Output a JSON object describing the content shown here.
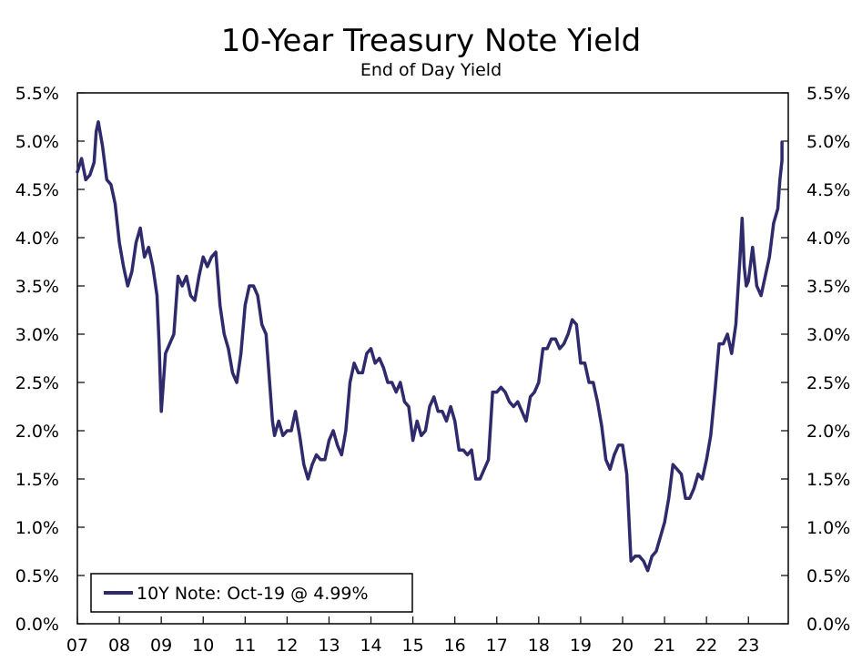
{
  "chart_data": {
    "type": "line",
    "title": "10-Year Treasury Note Yield",
    "subtitle": "End of Day Yield",
    "xlabel": "",
    "ylabel": "",
    "x_ticks": [
      "07",
      "08",
      "09",
      "10",
      "11",
      "12",
      "13",
      "14",
      "15",
      "16",
      "17",
      "18",
      "19",
      "20",
      "21",
      "22",
      "23"
    ],
    "y_ticks_left": [
      "0.0%",
      "0.5%",
      "1.0%",
      "1.5%",
      "2.0%",
      "2.5%",
      "3.0%",
      "3.5%",
      "4.0%",
      "4.5%",
      "5.0%",
      "5.5%"
    ],
    "y_ticks_right": [
      "0.0%",
      "0.5%",
      "1.0%",
      "1.5%",
      "2.0%",
      "2.5%",
      "3.0%",
      "3.5%",
      "4.0%",
      "4.5%",
      "5.0%",
      "5.5%"
    ],
    "xlim": [
      2007.0,
      2023.95
    ],
    "ylim": [
      0,
      5.5
    ],
    "grid": false,
    "legend_position": "bottom-left",
    "line_color": "#2e2a6b",
    "series": [
      {
        "name": "10Y Note: Oct-19 @ 4.99%",
        "points": [
          [
            2007.0,
            4.68
          ],
          [
            2007.1,
            4.82
          ],
          [
            2007.2,
            4.6
          ],
          [
            2007.3,
            4.65
          ],
          [
            2007.4,
            4.78
          ],
          [
            2007.45,
            5.1
          ],
          [
            2007.5,
            5.2
          ],
          [
            2007.6,
            4.95
          ],
          [
            2007.7,
            4.6
          ],
          [
            2007.8,
            4.55
          ],
          [
            2007.9,
            4.35
          ],
          [
            2008.0,
            3.95
          ],
          [
            2008.1,
            3.7
          ],
          [
            2008.2,
            3.5
          ],
          [
            2008.3,
            3.65
          ],
          [
            2008.4,
            3.95
          ],
          [
            2008.5,
            4.1
          ],
          [
            2008.6,
            3.8
          ],
          [
            2008.7,
            3.9
          ],
          [
            2008.8,
            3.7
          ],
          [
            2008.9,
            3.4
          ],
          [
            2008.95,
            2.9
          ],
          [
            2009.0,
            2.2
          ],
          [
            2009.1,
            2.8
          ],
          [
            2009.2,
            2.9
          ],
          [
            2009.3,
            3.0
          ],
          [
            2009.4,
            3.6
          ],
          [
            2009.5,
            3.5
          ],
          [
            2009.6,
            3.6
          ],
          [
            2009.7,
            3.4
          ],
          [
            2009.8,
            3.35
          ],
          [
            2009.9,
            3.6
          ],
          [
            2010.0,
            3.8
          ],
          [
            2010.1,
            3.7
          ],
          [
            2010.2,
            3.8
          ],
          [
            2010.3,
            3.85
          ],
          [
            2010.4,
            3.3
          ],
          [
            2010.5,
            3.0
          ],
          [
            2010.6,
            2.85
          ],
          [
            2010.7,
            2.6
          ],
          [
            2010.8,
            2.5
          ],
          [
            2010.9,
            2.8
          ],
          [
            2011.0,
            3.3
          ],
          [
            2011.1,
            3.5
          ],
          [
            2011.2,
            3.5
          ],
          [
            2011.3,
            3.4
          ],
          [
            2011.4,
            3.1
          ],
          [
            2011.5,
            3.0
          ],
          [
            2011.6,
            2.4
          ],
          [
            2011.65,
            2.1
          ],
          [
            2011.7,
            1.95
          ],
          [
            2011.8,
            2.1
          ],
          [
            2011.9,
            1.95
          ],
          [
            2012.0,
            2.0
          ],
          [
            2012.1,
            2.0
          ],
          [
            2012.2,
            2.2
          ],
          [
            2012.3,
            1.95
          ],
          [
            2012.4,
            1.65
          ],
          [
            2012.5,
            1.5
          ],
          [
            2012.6,
            1.65
          ],
          [
            2012.7,
            1.75
          ],
          [
            2012.8,
            1.7
          ],
          [
            2012.9,
            1.7
          ],
          [
            2013.0,
            1.9
          ],
          [
            2013.1,
            2.0
          ],
          [
            2013.2,
            1.85
          ],
          [
            2013.3,
            1.75
          ],
          [
            2013.4,
            2.0
          ],
          [
            2013.5,
            2.5
          ],
          [
            2013.6,
            2.7
          ],
          [
            2013.7,
            2.6
          ],
          [
            2013.8,
            2.6
          ],
          [
            2013.9,
            2.8
          ],
          [
            2014.0,
            2.85
          ],
          [
            2014.1,
            2.7
          ],
          [
            2014.2,
            2.75
          ],
          [
            2014.3,
            2.65
          ],
          [
            2014.4,
            2.5
          ],
          [
            2014.5,
            2.5
          ],
          [
            2014.6,
            2.4
          ],
          [
            2014.7,
            2.5
          ],
          [
            2014.8,
            2.3
          ],
          [
            2014.9,
            2.25
          ],
          [
            2015.0,
            1.9
          ],
          [
            2015.1,
            2.1
          ],
          [
            2015.2,
            1.95
          ],
          [
            2015.3,
            2.0
          ],
          [
            2015.4,
            2.25
          ],
          [
            2015.5,
            2.35
          ],
          [
            2015.6,
            2.2
          ],
          [
            2015.7,
            2.2
          ],
          [
            2015.8,
            2.1
          ],
          [
            2015.9,
            2.25
          ],
          [
            2016.0,
            2.1
          ],
          [
            2016.1,
            1.8
          ],
          [
            2016.2,
            1.8
          ],
          [
            2016.3,
            1.75
          ],
          [
            2016.4,
            1.8
          ],
          [
            2016.5,
            1.5
          ],
          [
            2016.6,
            1.5
          ],
          [
            2016.7,
            1.6
          ],
          [
            2016.8,
            1.7
          ],
          [
            2016.9,
            2.4
          ],
          [
            2017.0,
            2.4
          ],
          [
            2017.1,
            2.45
          ],
          [
            2017.2,
            2.4
          ],
          [
            2017.3,
            2.3
          ],
          [
            2017.4,
            2.25
          ],
          [
            2017.5,
            2.3
          ],
          [
            2017.6,
            2.2
          ],
          [
            2017.7,
            2.1
          ],
          [
            2017.8,
            2.35
          ],
          [
            2017.9,
            2.4
          ],
          [
            2018.0,
            2.5
          ],
          [
            2018.1,
            2.85
          ],
          [
            2018.2,
            2.85
          ],
          [
            2018.3,
            2.95
          ],
          [
            2018.4,
            2.95
          ],
          [
            2018.5,
            2.85
          ],
          [
            2018.6,
            2.9
          ],
          [
            2018.7,
            3.0
          ],
          [
            2018.8,
            3.15
          ],
          [
            2018.9,
            3.1
          ],
          [
            2019.0,
            2.7
          ],
          [
            2019.1,
            2.7
          ],
          [
            2019.2,
            2.5
          ],
          [
            2019.3,
            2.5
          ],
          [
            2019.4,
            2.3
          ],
          [
            2019.5,
            2.05
          ],
          [
            2019.6,
            1.7
          ],
          [
            2019.7,
            1.6
          ],
          [
            2019.8,
            1.75
          ],
          [
            2019.9,
            1.85
          ],
          [
            2020.0,
            1.85
          ],
          [
            2020.1,
            1.55
          ],
          [
            2020.15,
            1.1
          ],
          [
            2020.2,
            0.65
          ],
          [
            2020.3,
            0.7
          ],
          [
            2020.4,
            0.7
          ],
          [
            2020.5,
            0.65
          ],
          [
            2020.6,
            0.55
          ],
          [
            2020.7,
            0.7
          ],
          [
            2020.8,
            0.75
          ],
          [
            2020.9,
            0.9
          ],
          [
            2021.0,
            1.05
          ],
          [
            2021.1,
            1.3
          ],
          [
            2021.2,
            1.65
          ],
          [
            2021.3,
            1.6
          ],
          [
            2021.4,
            1.55
          ],
          [
            2021.5,
            1.3
          ],
          [
            2021.6,
            1.3
          ],
          [
            2021.7,
            1.4
          ],
          [
            2021.8,
            1.55
          ],
          [
            2021.9,
            1.5
          ],
          [
            2022.0,
            1.7
          ],
          [
            2022.1,
            1.95
          ],
          [
            2022.2,
            2.4
          ],
          [
            2022.3,
            2.9
          ],
          [
            2022.4,
            2.9
          ],
          [
            2022.5,
            3.0
          ],
          [
            2022.6,
            2.8
          ],
          [
            2022.7,
            3.1
          ],
          [
            2022.8,
            3.8
          ],
          [
            2022.85,
            4.2
          ],
          [
            2022.9,
            3.7
          ],
          [
            2022.95,
            3.5
          ],
          [
            2023.0,
            3.55
          ],
          [
            2023.1,
            3.9
          ],
          [
            2023.2,
            3.5
          ],
          [
            2023.3,
            3.4
          ],
          [
            2023.4,
            3.6
          ],
          [
            2023.5,
            3.8
          ],
          [
            2023.6,
            4.15
          ],
          [
            2023.7,
            4.3
          ],
          [
            2023.75,
            4.6
          ],
          [
            2023.8,
            4.8
          ],
          [
            2023.8,
            4.99
          ]
        ]
      }
    ]
  }
}
